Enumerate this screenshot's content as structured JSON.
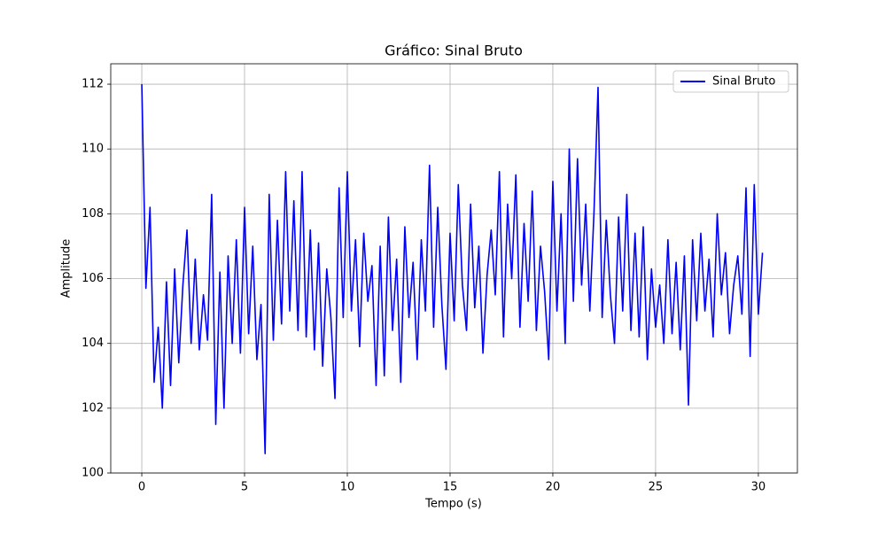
{
  "chart_data": {
    "type": "line",
    "title": "Gráfico: Sinal Bruto",
    "xlabel": "Tempo (s)",
    "ylabel": "Amplitude",
    "x": [
      0,
      0.2,
      0.4,
      0.6,
      0.8,
      1.0,
      1.2,
      1.4,
      1.6,
      1.8,
      2.0,
      2.2,
      2.4,
      2.6,
      2.8,
      3.0,
      3.2,
      3.4,
      3.6,
      3.8,
      4.0,
      4.2,
      4.4,
      4.6,
      4.8,
      5.0,
      5.2,
      5.4,
      5.6,
      5.8,
      6.0,
      6.2,
      6.4,
      6.6,
      6.8,
      7.0,
      7.2,
      7.4,
      7.6,
      7.8,
      8.0,
      8.2,
      8.4,
      8.6,
      8.8,
      9.0,
      9.2,
      9.4,
      9.6,
      9.8,
      10.0,
      10.2,
      10.4,
      10.6,
      10.8,
      11.0,
      11.2,
      11.4,
      11.6,
      11.8,
      12.0,
      12.2,
      12.4,
      12.6,
      12.8,
      13.0,
      13.2,
      13.4,
      13.6,
      13.8,
      14.0,
      14.2,
      14.4,
      14.6,
      14.8,
      15.0,
      15.2,
      15.4,
      15.6,
      15.8,
      16.0,
      16.2,
      16.4,
      16.6,
      16.8,
      17.0,
      17.2,
      17.4,
      17.6,
      17.8,
      18.0,
      18.2,
      18.4,
      18.6,
      18.8,
      19.0,
      19.2,
      19.4,
      19.6,
      19.8,
      20.0,
      20.2,
      20.4,
      20.6,
      20.8,
      21.0,
      21.2,
      21.4,
      21.6,
      21.8,
      22.0,
      22.2,
      22.4,
      22.6,
      22.8,
      23.0,
      23.2,
      23.4,
      23.6,
      23.8,
      24.0,
      24.2,
      24.4,
      24.6,
      24.8,
      25.0,
      25.2,
      25.4,
      25.6,
      25.8,
      26.0,
      26.2,
      26.4,
      26.6,
      26.8,
      27.0,
      27.2,
      27.4,
      27.6,
      27.8,
      28.0,
      28.2,
      28.4,
      28.6,
      28.8,
      29.0,
      29.2,
      29.4,
      29.6,
      29.8,
      30.0,
      30.2
    ],
    "series": [
      {
        "name": "Sinal Bruto",
        "color": "#0000ff",
        "values": [
          112.0,
          105.7,
          108.2,
          102.8,
          104.5,
          102.0,
          105.9,
          102.7,
          106.3,
          103.4,
          105.8,
          107.5,
          104.0,
          106.6,
          103.8,
          105.5,
          104.1,
          108.6,
          101.5,
          106.2,
          102.0,
          106.7,
          104.0,
          107.2,
          103.7,
          108.2,
          104.3,
          107.0,
          103.5,
          105.2,
          100.6,
          108.6,
          104.1,
          107.8,
          104.6,
          109.3,
          105.0,
          108.4,
          104.4,
          109.3,
          104.2,
          107.5,
          103.8,
          107.1,
          103.3,
          106.3,
          104.8,
          102.3,
          108.8,
          104.8,
          109.3,
          105.0,
          107.2,
          103.9,
          107.4,
          105.3,
          106.4,
          102.7,
          107.0,
          103.0,
          107.9,
          104.4,
          106.6,
          102.8,
          107.6,
          104.8,
          106.5,
          103.5,
          107.2,
          105.0,
          109.5,
          104.5,
          108.2,
          105.2,
          103.2,
          107.4,
          104.7,
          108.9,
          105.8,
          104.4,
          108.3,
          105.1,
          107.0,
          103.7,
          106.1,
          107.5,
          105.5,
          109.3,
          104.2,
          108.3,
          106.0,
          109.2,
          104.5,
          107.7,
          105.3,
          108.7,
          104.4,
          107.0,
          105.6,
          103.5,
          109.0,
          105.0,
          108.0,
          104.0,
          110.0,
          105.3,
          109.7,
          105.8,
          108.3,
          105.0,
          108.0,
          111.9,
          104.8,
          107.8,
          105.5,
          104.0,
          107.9,
          105.0,
          108.6,
          104.4,
          107.4,
          104.2,
          107.6,
          103.5,
          106.3,
          104.5,
          105.8,
          104.0,
          107.2,
          104.3,
          106.5,
          103.8,
          106.7,
          102.1,
          107.2,
          104.7,
          107.4,
          105.0,
          106.6,
          104.2,
          108.0,
          105.5,
          106.8,
          104.3,
          105.8,
          106.7,
          104.9,
          108.8,
          103.6,
          108.9,
          104.9,
          106.8
        ]
      }
    ],
    "xlim": [
      -1.51,
      31.9
    ],
    "xticks": [
      0,
      5,
      10,
      15,
      20,
      25,
      30
    ],
    "ylim": [
      100,
      112.63
    ],
    "yticks": [
      100,
      102,
      104,
      106,
      108,
      110,
      112
    ],
    "grid": true,
    "legend": "upper right"
  }
}
